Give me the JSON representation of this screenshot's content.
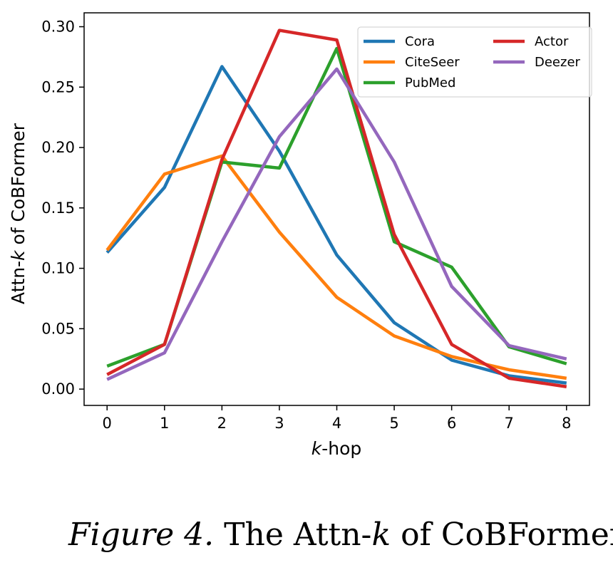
{
  "chart_data": {
    "type": "line",
    "title": "",
    "xlabel_italic": "k",
    "xlabel_rest": "-hop",
    "ylabel_prefix": "Attn-",
    "ylabel_italic": "k",
    "ylabel_suffix": " of CoBFormer",
    "x": [
      0,
      1,
      2,
      3,
      4,
      5,
      6,
      7,
      8
    ],
    "xlim": [
      -0.4,
      8.4
    ],
    "ylim": [
      -0.0135,
      0.3115
    ],
    "xticks": [
      "0",
      "1",
      "2",
      "3",
      "4",
      "5",
      "6",
      "7",
      "8"
    ],
    "yticks": [
      {
        "value": 0.0,
        "label": "0.00"
      },
      {
        "value": 0.05,
        "label": "0.05"
      },
      {
        "value": 0.1,
        "label": "0.10"
      },
      {
        "value": 0.15,
        "label": "0.15"
      },
      {
        "value": 0.2,
        "label": "0.20"
      },
      {
        "value": 0.25,
        "label": "0.25"
      },
      {
        "value": 0.3,
        "label": "0.30"
      }
    ],
    "grid": false,
    "legend_position": "top-right",
    "series": [
      {
        "name": "Cora",
        "color": "#1f77b4",
        "values": [
          0.113,
          0.167,
          0.267,
          0.197,
          0.111,
          0.055,
          0.024,
          0.011,
          0.005
        ]
      },
      {
        "name": "CiteSeer",
        "color": "#ff7f0e",
        "values": [
          0.115,
          0.178,
          0.193,
          0.13,
          0.076,
          0.044,
          0.027,
          0.016,
          0.009
        ]
      },
      {
        "name": "PubMed",
        "color": "#2ca02c",
        "values": [
          0.019,
          0.037,
          0.188,
          0.183,
          0.282,
          0.122,
          0.101,
          0.035,
          0.021
        ]
      },
      {
        "name": "Actor",
        "color": "#d62728",
        "values": [
          0.012,
          0.037,
          0.19,
          0.297,
          0.289,
          0.128,
          0.037,
          0.009,
          0.002
        ]
      },
      {
        "name": "Deezer",
        "color": "#9467bd",
        "values": [
          0.008,
          0.03,
          0.122,
          0.209,
          0.265,
          0.188,
          0.085,
          0.036,
          0.025
        ]
      }
    ]
  },
  "caption": {
    "label": "Figure 4.",
    "text_prefix": " The Attn-",
    "text_italic": "k",
    "text_suffix": " of CoBFormer."
  }
}
